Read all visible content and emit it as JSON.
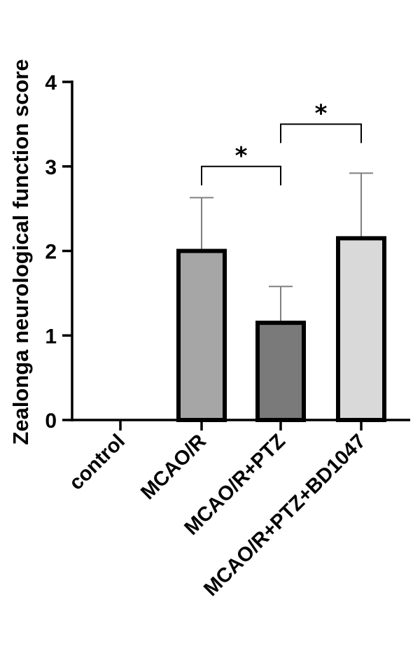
{
  "chart_data": {
    "type": "bar",
    "title": "",
    "xlabel": "",
    "ylabel": "Zealonga neurological function score",
    "ylim": [
      0,
      4
    ],
    "yticks": [
      0,
      1,
      2,
      3,
      4
    ],
    "grid": false,
    "legend": "none",
    "categories": [
      "control",
      "MCAO/R",
      "MCAO/R+PTZ",
      "MCAO/R+PTZ+BD1047"
    ],
    "values": [
      0,
      2.0,
      1.15,
      2.15
    ],
    "error_upper": [
      0,
      2.63,
      1.58,
      2.92
    ],
    "bar_colors": [
      "#ffffff",
      "#a6a6a6",
      "#7a7a7a",
      "#d9d9d9"
    ],
    "significance": [
      {
        "from": 1,
        "to": 2,
        "label": "*",
        "y": 3.0
      },
      {
        "from": 2,
        "to": 3,
        "label": "*",
        "y": 3.5
      }
    ]
  }
}
